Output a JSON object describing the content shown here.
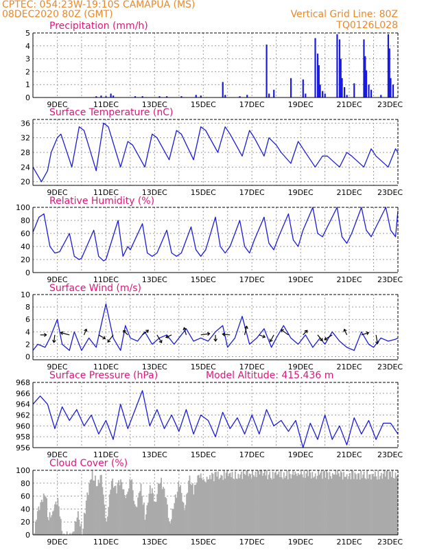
{
  "header": {
    "line1": "CPTEC:   054:23W-19:10S   CAMAPUA (MS)",
    "line2": "08DEC2020 80Z (GMT)",
    "right1": "Vertical Grid Line: 80Z",
    "right2": "TQ0126L028"
  },
  "colors": {
    "header": "#e8892a",
    "title": "#e0157a",
    "line": "#1a1adc",
    "bar": "#1a1adc",
    "cloud": "#aaaaaa",
    "arrow": "#000000"
  },
  "x_tick_labels": [
    "9DEC",
    "11DEC",
    "13DEC",
    "15DEC",
    "17DEC",
    "19DEC",
    "21DEC",
    "23DEC"
  ],
  "chart_data": [
    {
      "type": "bar",
      "title": "Precipitation (mm/h)",
      "x_unit": "day",
      "xlim": [
        8.0,
        23.0
      ],
      "ylim": [
        0,
        5
      ],
      "yticks": [
        0,
        1,
        2,
        3,
        4,
        5
      ],
      "x": [
        10.6,
        10.8,
        11.0,
        11.2,
        11.3,
        12.2,
        12.5,
        13.2,
        13.5,
        14.1,
        14.7,
        14.9,
        15.8,
        15.9,
        16.5,
        16.8,
        17.6,
        17.7,
        17.9,
        18.6,
        19.1,
        19.2,
        19.6,
        19.7,
        19.75,
        19.8,
        19.9,
        20.0,
        20.5,
        20.6,
        20.65,
        20.7,
        20.8,
        20.9,
        21.2,
        21.6,
        21.65,
        21.7,
        21.8,
        21.9,
        22.3,
        22.6,
        22.65,
        22.7,
        22.8
      ],
      "values": [
        0.1,
        0.15,
        0.1,
        0.3,
        0.15,
        0.1,
        0.1,
        0.1,
        0.1,
        0.1,
        0.2,
        0.15,
        1.2,
        0.2,
        0.1,
        0.2,
        4.1,
        0.3,
        0.6,
        1.5,
        1.4,
        0.3,
        4.6,
        3.4,
        2.5,
        1.0,
        0.5,
        0.3,
        4.9,
        4.5,
        3.0,
        1.5,
        0.8,
        0.2,
        1.1,
        4.5,
        3.2,
        2.1,
        1.0,
        0.6,
        0.2,
        4.9,
        3.8,
        1.5,
        1.0
      ]
    },
    {
      "type": "line",
      "title": "Surface Temperature (nC)",
      "x_unit": "day",
      "xlim": [
        8.0,
        23.0
      ],
      "ylim": [
        19,
        37
      ],
      "yticks": [
        20,
        24,
        28,
        32,
        36
      ],
      "x": [
        8.0,
        8.35,
        8.6,
        8.75,
        9.0,
        9.15,
        9.6,
        9.9,
        10.1,
        10.6,
        10.9,
        11.1,
        11.6,
        11.9,
        12.1,
        12.6,
        12.9,
        13.1,
        13.6,
        13.9,
        14.1,
        14.6,
        14.9,
        15.1,
        15.6,
        15.9,
        16.1,
        16.6,
        16.9,
        17.1,
        17.5,
        17.7,
        18.0,
        18.2,
        18.6,
        18.9,
        19.1,
        19.6,
        19.9,
        20.1,
        20.6,
        20.9,
        21.1,
        21.6,
        21.9,
        22.1,
        22.6,
        22.9,
        23.0
      ],
      "values": [
        24,
        20,
        23,
        28,
        32,
        33,
        24,
        35,
        34,
        23,
        36,
        35,
        24,
        31,
        30,
        24,
        33,
        32,
        26,
        34,
        33,
        26,
        35,
        34,
        28,
        35,
        33,
        27,
        34,
        32,
        27,
        32,
        30,
        28,
        25,
        31,
        29,
        24,
        27,
        27,
        24,
        28,
        27,
        24,
        29,
        27,
        24,
        29,
        28
      ]
    },
    {
      "type": "line",
      "title": "Relative Humidity (%)",
      "x_unit": "day",
      "xlim": [
        8.0,
        23.0
      ],
      "ylim": [
        0,
        100
      ],
      "yticks": [
        0,
        20,
        40,
        60,
        80,
        100
      ],
      "x": [
        8.0,
        8.25,
        8.45,
        8.7,
        8.9,
        9.1,
        9.5,
        9.7,
        9.9,
        10.0,
        10.5,
        10.7,
        10.9,
        11.0,
        11.5,
        11.7,
        11.9,
        12.0,
        12.5,
        12.7,
        12.9,
        13.1,
        13.5,
        13.7,
        13.9,
        14.1,
        14.5,
        14.7,
        14.9,
        15.1,
        15.5,
        15.7,
        15.9,
        16.1,
        16.5,
        16.7,
        16.9,
        17.1,
        17.5,
        17.7,
        17.9,
        18.1,
        18.5,
        18.7,
        18.9,
        19.1,
        19.5,
        19.7,
        19.9,
        20.1,
        20.5,
        20.7,
        20.9,
        21.1,
        21.5,
        21.7,
        21.9,
        22.1,
        22.5,
        22.7,
        22.9,
        23.0
      ],
      "values": [
        62,
        85,
        90,
        40,
        30,
        32,
        60,
        25,
        20,
        22,
        65,
        25,
        18,
        20,
        80,
        25,
        40,
        35,
        75,
        30,
        25,
        30,
        65,
        30,
        25,
        30,
        70,
        35,
        25,
        35,
        85,
        40,
        30,
        40,
        80,
        40,
        30,
        50,
        85,
        45,
        35,
        55,
        90,
        50,
        40,
        65,
        100,
        60,
        55,
        70,
        100,
        55,
        45,
        60,
        100,
        65,
        55,
        70,
        100,
        65,
        55,
        95
      ]
    },
    {
      "type": "line",
      "title": "Surface Wind (m/s)",
      "x_unit": "day",
      "xlim": [
        8.0,
        23.0
      ],
      "ylim": [
        -0.5,
        10
      ],
      "yticks": [
        0,
        2,
        4,
        6,
        8,
        10
      ],
      "x": [
        8.0,
        8.2,
        8.5,
        8.7,
        9.0,
        9.2,
        9.5,
        9.7,
        10.0,
        10.3,
        10.6,
        10.8,
        11.0,
        11.3,
        11.6,
        11.8,
        12.0,
        12.3,
        12.6,
        12.9,
        13.2,
        13.5,
        13.8,
        14.0,
        14.3,
        14.6,
        14.9,
        15.2,
        15.5,
        15.8,
        16.0,
        16.3,
        16.6,
        16.9,
        17.2,
        17.5,
        17.8,
        18.0,
        18.3,
        18.6,
        18.9,
        19.2,
        19.5,
        19.8,
        20.0,
        20.3,
        20.6,
        20.9,
        21.2,
        21.5,
        21.8,
        22.0,
        22.3,
        22.6,
        22.9,
        23.0
      ],
      "values": [
        1,
        2,
        1.5,
        3,
        6,
        2,
        1,
        4,
        1,
        3,
        1.5,
        5,
        8.5,
        3,
        1,
        5,
        3,
        2.5,
        4,
        2,
        3,
        3.5,
        2,
        3,
        4.5,
        2.5,
        3,
        2.5,
        4,
        5,
        1.5,
        3,
        6.5,
        2,
        3,
        4.5,
        1.5,
        3,
        5,
        3,
        2,
        3.5,
        1.5,
        3,
        2,
        4,
        2.5,
        1.5,
        1,
        4,
        2,
        1.5,
        3,
        2.5,
        2.8,
        3
      ]
    },
    {
      "type": "line",
      "title": "Surface Pressure (hPa)",
      "annotation": "Model Altitude: 415.436 m",
      "x_unit": "day",
      "xlim": [
        8.0,
        23.0
      ],
      "ylim": [
        956,
        968
      ],
      "yticks": [
        956,
        958,
        960,
        962,
        964,
        966,
        968
      ],
      "x": [
        8.0,
        8.3,
        8.6,
        8.9,
        9.2,
        9.5,
        9.8,
        10.1,
        10.4,
        10.7,
        11.0,
        11.3,
        11.6,
        11.9,
        12.2,
        12.5,
        12.8,
        13.1,
        13.4,
        13.7,
        14.0,
        14.3,
        14.6,
        14.9,
        15.2,
        15.5,
        15.8,
        16.1,
        16.4,
        16.7,
        17.0,
        17.3,
        17.6,
        17.9,
        18.2,
        18.5,
        18.8,
        19.1,
        19.4,
        19.7,
        20.0,
        20.3,
        20.6,
        20.9,
        21.2,
        21.5,
        21.8,
        22.1,
        22.4,
        22.7,
        23.0
      ],
      "values": [
        964,
        965.5,
        964,
        959.5,
        963.5,
        961,
        963,
        960,
        962,
        958.5,
        961,
        957.5,
        964,
        959.5,
        963,
        966.5,
        960,
        963,
        959.5,
        962,
        959,
        963,
        958.5,
        962,
        961,
        958,
        962.5,
        959.5,
        961.5,
        958.5,
        962,
        958.5,
        963,
        960,
        961,
        959,
        961,
        956,
        960.5,
        957.5,
        962,
        957.5,
        960,
        956.5,
        961.5,
        958.5,
        961,
        957.5,
        960.5,
        960.5,
        958.5
      ]
    },
    {
      "type": "area",
      "title": "Cloud Cover (%)",
      "x_unit": "day",
      "xlim": [
        8.0,
        23.0
      ],
      "ylim": [
        0,
        100
      ],
      "yticks": [
        0,
        20,
        40,
        60,
        80,
        100
      ],
      "x": [
        8.0,
        8.2,
        8.4,
        8.5,
        8.6,
        8.8,
        9.0,
        9.2,
        9.4,
        9.6,
        9.8,
        10.0,
        10.2,
        10.4,
        10.6,
        10.8,
        11.0,
        11.2,
        11.4,
        11.6,
        11.8,
        12.0,
        12.2,
        12.4,
        12.6,
        12.8,
        13.0,
        13.2,
        13.4,
        13.6,
        13.8,
        14.0,
        14.2,
        14.4,
        14.6,
        14.8,
        15.0,
        15.5,
        16.0,
        16.5,
        17.0,
        17.5,
        18.0,
        18.5,
        19.0,
        19.5,
        20.0,
        20.5,
        21.0,
        21.5,
        22.0,
        22.5,
        23.0
      ],
      "values": [
        0,
        45,
        65,
        70,
        30,
        40,
        55,
        5,
        3,
        2,
        40,
        10,
        60,
        98,
        85,
        90,
        20,
        92,
        75,
        88,
        60,
        94,
        40,
        85,
        30,
        80,
        55,
        90,
        70,
        20,
        60,
        85,
        40,
        96,
        70,
        98,
        90,
        95,
        97,
        98,
        99,
        98,
        97,
        96,
        98,
        99,
        97,
        98,
        96,
        98,
        97,
        98,
        97
      ]
    }
  ]
}
